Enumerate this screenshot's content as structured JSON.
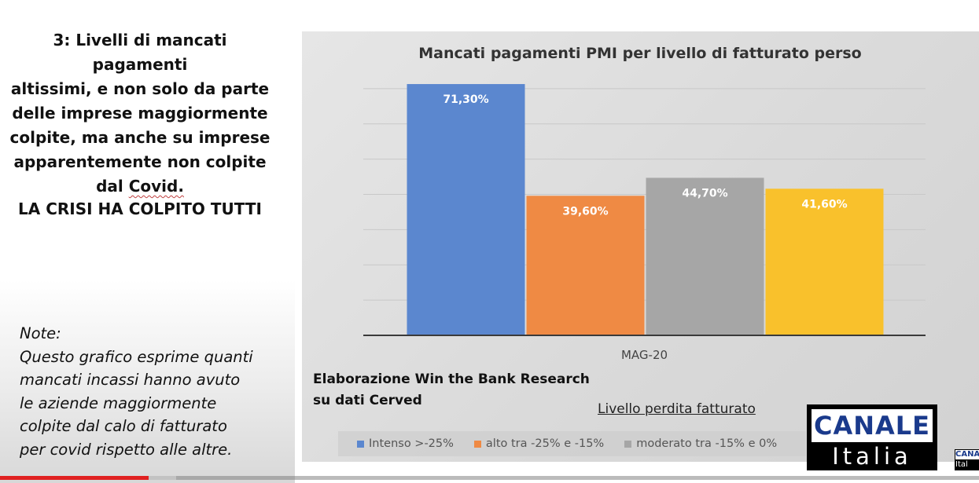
{
  "slide": {
    "point_lines": [
      "3: Livelli di mancati pagamenti",
      "altissimi, e non solo da parte",
      "delle imprese maggiormente",
      "colpite, ma anche su imprese",
      "apparentemente non colpite",
      "dal "
    ],
    "point_last_word": "Covid.",
    "crisis": "LA CRISI HA COLPITO TUTTI",
    "notes_lines": [
      "Note:",
      "Questo grafico esprime quanti",
      "mancati incassi hanno avuto",
      "le aziende maggiormente",
      "colpite dal calo di fatturato",
      "per covid rispetto alle altre."
    ],
    "source_lines": [
      "Elaborazione Win the Bank Research",
      " su dati Cerved"
    ]
  },
  "chart_data": {
    "type": "bar",
    "title": "Mancati pagamenti PMI  per livello di fatturato perso",
    "categories": [
      "MAG-20"
    ],
    "series": [
      {
        "name": "Intenso >-25%",
        "values": [
          71.3
        ],
        "label": "71,30%",
        "color": "#5b87cf"
      },
      {
        "name": "alto tra -25% e -15%",
        "values": [
          39.6
        ],
        "label": "39,60%",
        "color": "#ef8a44"
      },
      {
        "name": "moderato tra -15% e 0%",
        "values": [
          44.7
        ],
        "label": "44,70%",
        "color": "#a6a6a6"
      },
      {
        "name": "",
        "values": [
          41.6
        ],
        "label": "41,60%",
        "color": "#f9c12c"
      }
    ],
    "xlabel": "Livello perdita fatturato",
    "ylabel": "",
    "ylim": [
      0,
      80
    ],
    "grid": true,
    "legend": "bottom"
  },
  "logo": {
    "top": "CANALE",
    "bottom": "Italia",
    "mini_top": "CANA",
    "mini_bottom": "Ital"
  },
  "video": {
    "played_fraction": 0.152,
    "buffered_fraction": 0.18
  }
}
